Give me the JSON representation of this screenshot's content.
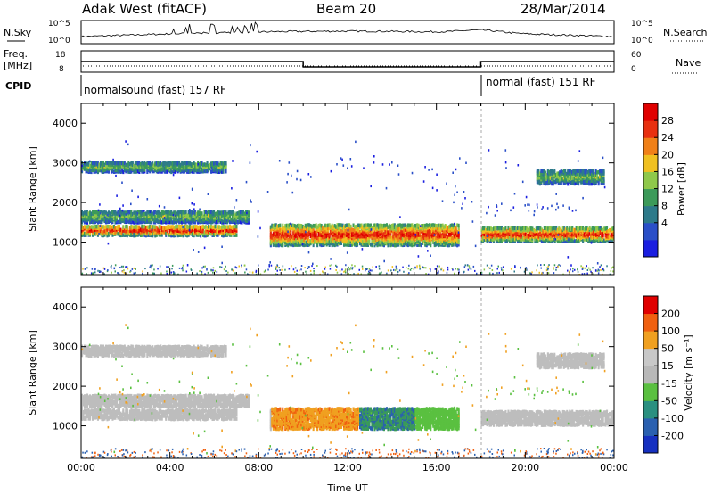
{
  "header": {
    "station": "Adak West (fitACF)",
    "beam": "Beam 20",
    "date": "28/Mar/2014"
  },
  "strips": {
    "nsky_label": "N.Sky",
    "nsky_ticks": [
      "10^5",
      "10^0"
    ],
    "nsearch_label": "N.Search",
    "nsearch_ticks": [
      "10^5",
      "10^0"
    ],
    "freq_label_1": "Freq.",
    "freq_label_2": "[MHz]",
    "freq_ticks": [
      "18",
      "8"
    ],
    "nave_label": "Nave",
    "nave_ticks": [
      "60",
      "0"
    ],
    "cpid_label": "CPID",
    "cpid_segments": [
      {
        "label": "normalsound (fast) 157 RF",
        "start_h": 0,
        "end_h": 18
      },
      {
        "label": "normal (fast) 151 RF",
        "start_h": 18,
        "end_h": 24
      }
    ]
  },
  "axes": {
    "xlabel": "Time UT",
    "xticks": [
      "00:00",
      "04:00",
      "08:00",
      "12:00",
      "16:00",
      "20:00",
      "00:00"
    ],
    "ylabel": "Slant Range [km]",
    "yticks": [
      "4000",
      "3000",
      "2000",
      "1000"
    ]
  },
  "power_scale": {
    "label": "Power [dB]",
    "ticks": [
      "28",
      "24",
      "20",
      "16",
      "12",
      "8",
      "4"
    ],
    "colors": [
      "#1a1ee0",
      "#2a4fc8",
      "#2d7a8a",
      "#3c9a5a",
      "#8fc84a",
      "#f0c020",
      "#f08018",
      "#e83010",
      "#e00000"
    ]
  },
  "velocity_scale": {
    "label": "Velocity [m s⁻¹]",
    "ticks": [
      "200",
      "100",
      "50",
      "15",
      "-15",
      "-50",
      "-100",
      "-200"
    ],
    "colors": [
      "#1630c0",
      "#2a60b0",
      "#2a9080",
      "#5ac040",
      "#b8b8b8",
      "#c8c8c8",
      "#f0a020",
      "#f06010",
      "#e00000"
    ]
  },
  "chart_data": {
    "type": "heatmap",
    "time_range_h": [
      0,
      24
    ],
    "range_ylim_km": [
      180,
      4500
    ],
    "frequency_mhz": {
      "ylim": [
        8,
        18
      ],
      "segments": [
        {
          "start_h": 0,
          "end_h": 10,
          "value": 13
        },
        {
          "start_h": 10,
          "end_h": 18,
          "value": 10.5
        },
        {
          "start_h": 18,
          "end_h": 24,
          "value": 13
        }
      ]
    },
    "power_bands": [
      {
        "start_h": 0,
        "end_h": 7.0,
        "center_km": 1300,
        "width_km": 260,
        "level": "high"
      },
      {
        "start_h": 0,
        "end_h": 7.5,
        "center_km": 1650,
        "width_km": 300,
        "level": "medium"
      },
      {
        "start_h": 0,
        "end_h": 6.5,
        "center_km": 2900,
        "width_km": 250,
        "level": "medium"
      },
      {
        "start_h": 8.5,
        "end_h": 17.0,
        "center_km": 1200,
        "width_km": 550,
        "level": "high"
      },
      {
        "start_h": 18.0,
        "end_h": 24,
        "center_km": 1200,
        "width_km": 350,
        "level": "high"
      },
      {
        "start_h": 20.5,
        "end_h": 23.5,
        "center_km": 2650,
        "width_km": 350,
        "level": "medium"
      }
    ]
  }
}
